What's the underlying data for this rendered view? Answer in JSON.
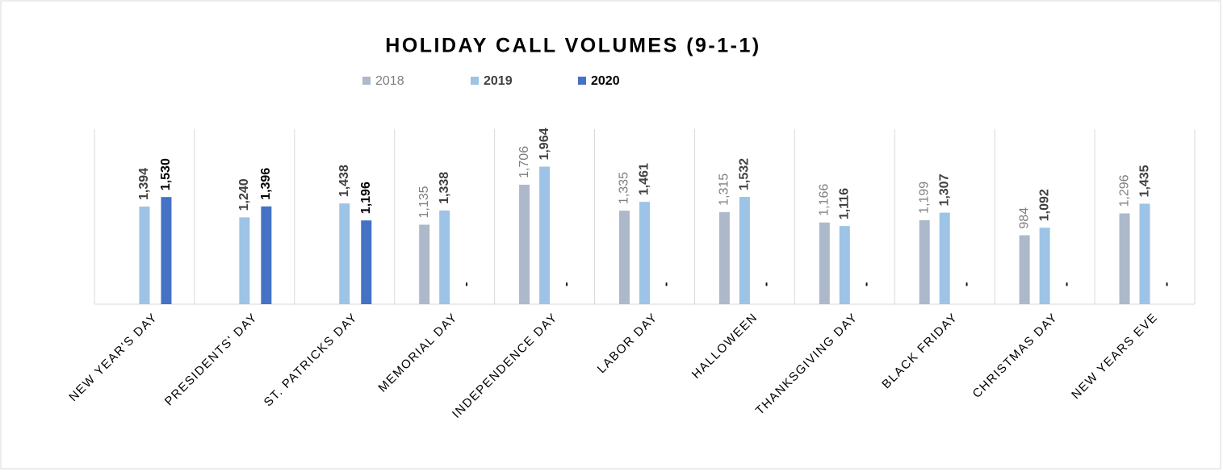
{
  "chart_data": {
    "type": "bar",
    "title": "HOLIDAY CALL VOLUMES (9-1-1)",
    "categories": [
      "NEW YEAR'S DAY",
      "PRESIDENTS' DAY",
      "ST. PATRICKS DAY",
      "MEMORIAL DAY",
      "INDEPENDENCE DAY",
      "LABOR DAY",
      "HALLOWEEN",
      "THANKSGIVING DAY",
      "BLACK FRIDAY",
      "CHRISTMAS DAY",
      "NEW YEARS EVE"
    ],
    "series": [
      {
        "name": "2018",
        "color": "#adb9ca",
        "values": [
          null,
          null,
          null,
          1135,
          1706,
          1335,
          1315,
          1166,
          1199,
          984,
          1296
        ],
        "value_labels": [
          null,
          null,
          null,
          "1,135",
          "1,706",
          "1,335",
          "1,315",
          "1,166",
          "1,199",
          "984",
          "1,296"
        ]
      },
      {
        "name": "2019",
        "color": "#9dc3e6",
        "values": [
          1394,
          1240,
          1438,
          1338,
          1964,
          1461,
          1532,
          1116,
          1307,
          1092,
          1435
        ],
        "value_labels": [
          "1,394",
          "1,240",
          "1,438",
          "1,338",
          "1,964",
          "1,461",
          "1,532",
          "1,116",
          "1,307",
          "1,092",
          "1,435"
        ]
      },
      {
        "name": "2020",
        "color": "#4472c4",
        "values": [
          1530,
          1396,
          1196,
          0,
          0,
          0,
          0,
          0,
          0,
          0,
          0
        ],
        "value_labels": [
          "1,530",
          "1,396",
          "1,196",
          "-",
          "-",
          "-",
          "-",
          "-",
          "-",
          "-",
          "-"
        ]
      }
    ],
    "ylim": [
      0,
      2500
    ],
    "legend": "top"
  }
}
